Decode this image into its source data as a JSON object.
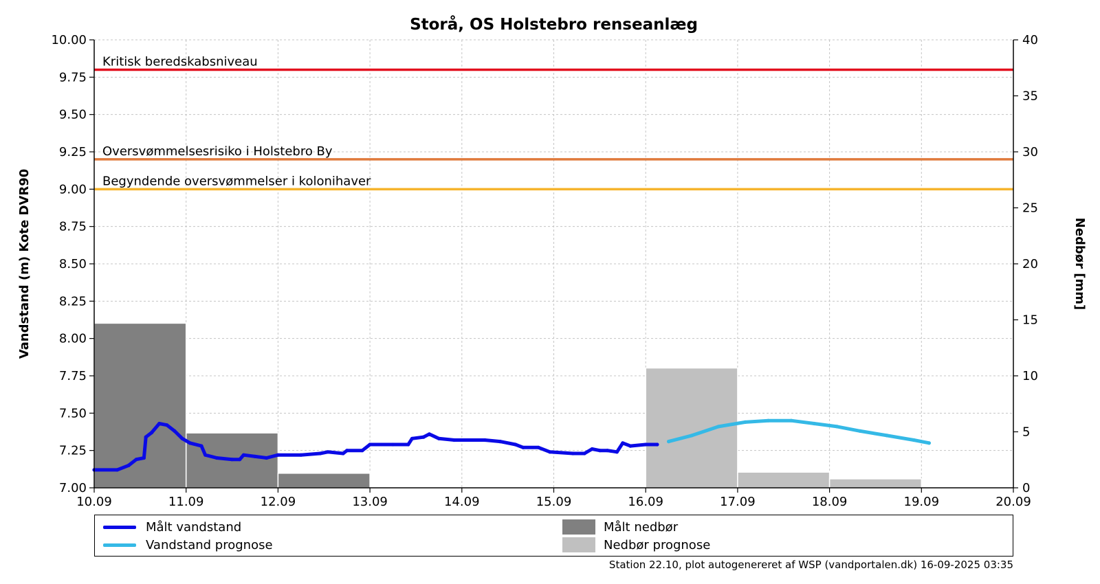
{
  "footer": "Station 22.10, plot autogenereret af WSP (vandportalen.dk) 16-09-2025 03:35",
  "chart_data": {
    "type": "line",
    "title": "Storå, OS Holstebro renseanlæg",
    "ylabel_left": "Vandstand (m) Kote DVR90",
    "ylabel_right": "Nedbør [mm]",
    "xlim": [
      "2025-09-10T00:00",
      "2025-09-20T00:00"
    ],
    "ylim_left": [
      7.0,
      10.0
    ],
    "ylim_right": [
      0,
      40
    ],
    "grid": true,
    "legend_placement": "bottom",
    "x_ticks": {
      "values": [
        "2025-09-10T00:00",
        "2025-09-11T00:00",
        "2025-09-12T00:00",
        "2025-09-13T00:00",
        "2025-09-14T00:00",
        "2025-09-15T00:00",
        "2025-09-16T00:00",
        "2025-09-17T00:00",
        "2025-09-18T00:00",
        "2025-09-19T00:00",
        "2025-09-20T00:00"
      ],
      "labels": [
        "10.09",
        "11.09",
        "12.09",
        "13.09",
        "14.09",
        "15.09",
        "16.09",
        "17.09",
        "18.09",
        "19.09",
        "20.09"
      ]
    },
    "y_ticks_left": {
      "values": [
        7.0,
        7.25,
        7.5,
        7.75,
        8.0,
        8.25,
        8.5,
        8.75,
        9.0,
        9.25,
        9.5,
        9.75,
        10.0
      ],
      "labels": [
        "7.00",
        "7.25",
        "7.50",
        "7.75",
        "8.00",
        "8.25",
        "8.50",
        "8.75",
        "9.00",
        "9.25",
        "9.50",
        "9.75",
        "10.00"
      ]
    },
    "y_ticks_right": {
      "values": [
        0,
        5,
        10,
        15,
        20,
        25,
        30,
        35,
        40
      ],
      "labels": [
        "0",
        "5",
        "10",
        "15",
        "20",
        "25",
        "30",
        "35",
        "40"
      ]
    },
    "thresholds": [
      {
        "label": "Kritisk beredskabsniveau",
        "value": 9.8,
        "color": "#e3101e"
      },
      {
        "label": "Oversvømmelsesrisiko i Holstebro By",
        "value": 9.2,
        "color": "#e07a3c"
      },
      {
        "label": "Begyndende oversvømmelser i kolonihaver",
        "value": 9.0,
        "color": "#f6b42c"
      }
    ],
    "bar_series": [
      {
        "name": "Målt nedbør",
        "color": "#808080",
        "bars": [
          {
            "start": "2025-09-10T00:00",
            "end": "2025-09-11T00:00",
            "value": 14.7
          },
          {
            "start": "2025-09-11T00:00",
            "end": "2025-09-12T00:00",
            "value": 4.9
          },
          {
            "start": "2025-09-12T00:00",
            "end": "2025-09-13T00:00",
            "value": 1.3
          }
        ]
      },
      {
        "name": "Nedbør prognose",
        "color": "#c0c0c0",
        "bars": [
          {
            "start": "2025-09-16T00:00",
            "end": "2025-09-17T00:00",
            "value": 10.7
          },
          {
            "start": "2025-09-17T00:00",
            "end": "2025-09-18T00:00",
            "value": 1.4
          },
          {
            "start": "2025-09-18T00:00",
            "end": "2025-09-19T00:00",
            "value": 0.8
          }
        ]
      }
    ],
    "line_series": [
      {
        "name": "Målt vandstand",
        "color": "#0a0ae6",
        "points": [
          [
            "2025-09-10T00:00",
            7.12
          ],
          [
            "2025-09-10T06:00",
            7.12
          ],
          [
            "2025-09-10T09:00",
            7.15
          ],
          [
            "2025-09-10T11:00",
            7.19
          ],
          [
            "2025-09-10T13:00",
            7.2
          ],
          [
            "2025-09-10T13:30",
            7.34
          ],
          [
            "2025-09-10T15:00",
            7.37
          ],
          [
            "2025-09-10T17:00",
            7.43
          ],
          [
            "2025-09-10T19:00",
            7.42
          ],
          [
            "2025-09-10T21:00",
            7.38
          ],
          [
            "2025-09-10T23:00",
            7.33
          ],
          [
            "2025-09-11T01:00",
            7.3
          ],
          [
            "2025-09-11T04:00",
            7.28
          ],
          [
            "2025-09-11T05:00",
            7.22
          ],
          [
            "2025-09-11T08:00",
            7.2
          ],
          [
            "2025-09-11T12:00",
            7.19
          ],
          [
            "2025-09-11T14:00",
            7.19
          ],
          [
            "2025-09-11T15:00",
            7.22
          ],
          [
            "2025-09-11T18:00",
            7.21
          ],
          [
            "2025-09-11T21:00",
            7.2
          ],
          [
            "2025-09-12T00:00",
            7.22
          ],
          [
            "2025-09-12T06:00",
            7.22
          ],
          [
            "2025-09-12T11:00",
            7.23
          ],
          [
            "2025-09-12T13:00",
            7.24
          ],
          [
            "2025-09-12T17:00",
            7.23
          ],
          [
            "2025-09-12T18:00",
            7.25
          ],
          [
            "2025-09-12T22:00",
            7.25
          ],
          [
            "2025-09-13T00:00",
            7.29
          ],
          [
            "2025-09-13T06:00",
            7.29
          ],
          [
            "2025-09-13T10:00",
            7.29
          ],
          [
            "2025-09-13T11:00",
            7.33
          ],
          [
            "2025-09-13T14:00",
            7.34
          ],
          [
            "2025-09-13T15:30",
            7.36
          ],
          [
            "2025-09-13T18:00",
            7.33
          ],
          [
            "2025-09-13T22:00",
            7.32
          ],
          [
            "2025-09-14T06:00",
            7.32
          ],
          [
            "2025-09-14T10:00",
            7.31
          ],
          [
            "2025-09-14T14:00",
            7.29
          ],
          [
            "2025-09-14T16:00",
            7.27
          ],
          [
            "2025-09-14T20:00",
            7.27
          ],
          [
            "2025-09-14T23:00",
            7.24
          ],
          [
            "2025-09-15T05:00",
            7.23
          ],
          [
            "2025-09-15T08:00",
            7.23
          ],
          [
            "2025-09-15T10:00",
            7.26
          ],
          [
            "2025-09-15T12:00",
            7.25
          ],
          [
            "2025-09-15T14:00",
            7.25
          ],
          [
            "2025-09-15T16:30",
            7.24
          ],
          [
            "2025-09-15T18:00",
            7.3
          ],
          [
            "2025-09-15T20:00",
            7.28
          ],
          [
            "2025-09-16T00:00",
            7.29
          ],
          [
            "2025-09-16T03:00",
            7.29
          ]
        ]
      },
      {
        "name": "Vandstand prognose",
        "color": "#35b9e6",
        "points": [
          [
            "2025-09-16T06:00",
            7.31
          ],
          [
            "2025-09-16T12:00",
            7.35
          ],
          [
            "2025-09-16T19:00",
            7.41
          ],
          [
            "2025-09-17T02:00",
            7.44
          ],
          [
            "2025-09-17T08:00",
            7.45
          ],
          [
            "2025-09-17T14:00",
            7.45
          ],
          [
            "2025-09-17T20:00",
            7.43
          ],
          [
            "2025-09-18T02:00",
            7.41
          ],
          [
            "2025-09-18T08:00",
            7.38
          ],
          [
            "2025-09-18T15:00",
            7.35
          ],
          [
            "2025-09-18T22:00",
            7.32
          ],
          [
            "2025-09-19T02:00",
            7.3
          ]
        ]
      }
    ]
  }
}
